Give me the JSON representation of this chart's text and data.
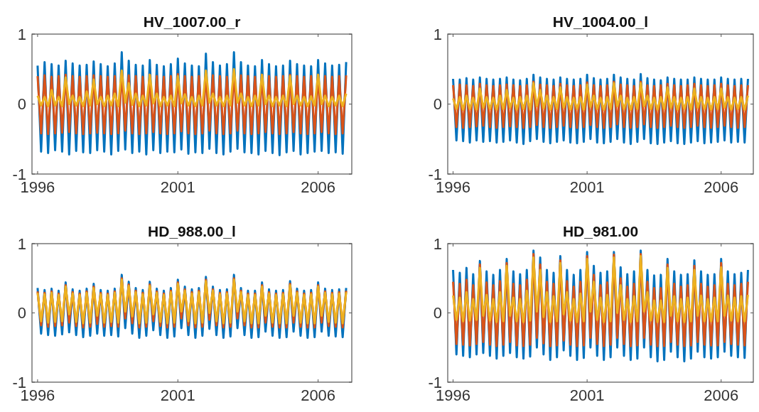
{
  "chart_data": [
    {
      "type": "line",
      "title": "HV_1007.00_r",
      "xlim": [
        1995.8,
        2007.2
      ],
      "ylim": [
        -1,
        1
      ],
      "xticks": [
        1996,
        2001,
        2006
      ],
      "yticks": [
        -1,
        0,
        1
      ],
      "x": [
        1996,
        1996.125,
        1996.25,
        1996.375,
        1996.5,
        1996.625,
        1996.75,
        1996.875,
        1997,
        1997.125,
        1997.25,
        1997.375,
        1997.5,
        1997.625,
        1997.75,
        1997.875,
        1998,
        1998.125,
        1998.25,
        1998.375,
        1998.5,
        1998.625,
        1998.75,
        1998.875,
        1999,
        1999.125,
        1999.25,
        1999.375,
        1999.5,
        1999.625,
        1999.75,
        1999.875,
        2000,
        2000.125,
        2000.25,
        2000.375,
        2000.5,
        2000.625,
        2000.75,
        2000.875,
        2001,
        2001.125,
        2001.25,
        2001.375,
        2001.5,
        2001.625,
        2001.75,
        2001.875,
        2002,
        2002.125,
        2002.25,
        2002.375,
        2002.5,
        2002.625,
        2002.75,
        2002.875,
        2003,
        2003.125,
        2003.25,
        2003.375,
        2003.5,
        2003.625,
        2003.75,
        2003.875,
        2004,
        2004.125,
        2004.25,
        2004.375,
        2004.5,
        2004.625,
        2004.75,
        2004.875,
        2005,
        2005.125,
        2005.25,
        2005.375,
        2005.5,
        2005.625,
        2005.75,
        2005.875,
        2006,
        2006.125,
        2006.25,
        2006.375,
        2006.5,
        2006.625,
        2006.75,
        2006.875,
        2007
      ],
      "series": [
        {
          "color": "#0072bd",
          "values": [
            0.55,
            -0.68,
            0.6,
            -0.7,
            0.57,
            -0.66,
            0.55,
            -0.68,
            0.62,
            -0.72,
            0.58,
            -0.67,
            0.55,
            -0.69,
            0.56,
            -0.7,
            0.61,
            -0.66,
            0.57,
            -0.68,
            0.54,
            -0.72,
            0.58,
            -0.67,
            0.74,
            -0.65,
            0.62,
            -0.7,
            0.56,
            -0.68,
            0.55,
            -0.72,
            0.63,
            -0.66,
            0.56,
            -0.7,
            0.54,
            -0.68,
            0.57,
            -0.69,
            0.65,
            -0.65,
            0.58,
            -0.71,
            0.55,
            -0.69,
            0.54,
            -0.7,
            0.72,
            -0.64,
            0.6,
            -0.7,
            0.55,
            -0.72,
            0.57,
            -0.68,
            0.74,
            -0.64,
            0.6,
            -0.69,
            0.55,
            -0.7,
            0.54,
            -0.72,
            0.63,
            -0.67,
            0.57,
            -0.7,
            0.54,
            -0.73,
            0.55,
            -0.69,
            0.62,
            -0.67,
            0.57,
            -0.72,
            0.55,
            -0.7,
            0.54,
            -0.68,
            0.63,
            -0.67,
            0.58,
            -0.7,
            0.55,
            -0.69,
            0.56,
            -0.71,
            0.6
          ]
        },
        {
          "color": "#d95319",
          "values": [
            0.4,
            -0.42,
            0.41,
            -0.43,
            0.39,
            -0.42,
            0.4,
            -0.41,
            0.42,
            -0.4,
            0.4,
            -0.42,
            0.39,
            -0.43,
            0.4,
            -0.42,
            0.41,
            -0.41,
            0.4,
            -0.42,
            0.39,
            -0.43,
            0.4,
            -0.42,
            0.45,
            -0.38,
            0.41,
            -0.42,
            0.4,
            -0.43,
            0.39,
            -0.42,
            0.42,
            -0.4,
            0.4,
            -0.42,
            0.39,
            -0.43,
            0.4,
            -0.42,
            0.43,
            -0.39,
            0.4,
            -0.42,
            0.39,
            -0.43,
            0.4,
            -0.42,
            0.44,
            -0.38,
            0.41,
            -0.42,
            0.4,
            -0.43,
            0.39,
            -0.42,
            0.45,
            -0.38,
            0.41,
            -0.42,
            0.4,
            -0.43,
            0.39,
            -0.42,
            0.42,
            -0.4,
            0.4,
            -0.42,
            0.39,
            -0.43,
            0.4,
            -0.42,
            0.42,
            -0.4,
            0.4,
            -0.42,
            0.39,
            -0.43,
            0.4,
            -0.42,
            0.42,
            -0.4,
            0.4,
            -0.42,
            0.39,
            -0.43,
            0.4,
            -0.42,
            0.41
          ]
        },
        {
          "color": "#edb120",
          "values": [
            0.12,
            -0.02,
            0.1,
            -0.03,
            0.2,
            -0.02,
            0.1,
            -0.03,
            0.38,
            0,
            0.12,
            -0.02,
            0.1,
            -0.03,
            0.18,
            -0.02,
            0.35,
            0,
            0.1,
            -0.03,
            0.12,
            -0.02,
            0.15,
            -0.03,
            0.48,
            0.02,
            0.3,
            -0.01,
            0.15,
            -0.03,
            0.12,
            -0.02,
            0.42,
            0.01,
            0.15,
            -0.03,
            0.1,
            -0.02,
            0.12,
            -0.03,
            0.4,
            0.01,
            0.14,
            -0.02,
            0.1,
            -0.03,
            0.12,
            -0.02,
            0.48,
            0.02,
            0.15,
            -0.02,
            0.1,
            -0.03,
            0.12,
            -0.02,
            0.5,
            0.02,
            0.15,
            -0.02,
            0.1,
            -0.03,
            0.12,
            -0.02,
            0.42,
            0,
            0.12,
            -0.03,
            0.1,
            -0.02,
            0.12,
            -0.03,
            0.4,
            0,
            0.12,
            -0.02,
            0.1,
            -0.03,
            0.11,
            -0.02,
            0.42,
            0,
            0.12,
            -0.03,
            0.1,
            -0.02,
            0.12,
            -0.03,
            0.15
          ]
        }
      ]
    },
    {
      "type": "line",
      "title": "HV_1004.00_l",
      "xlim": [
        1995.8,
        2007.2
      ],
      "ylim": [
        -1,
        1
      ],
      "xticks": [
        1996,
        2001,
        2006
      ],
      "yticks": [
        -1,
        0,
        1
      ],
      "x": [
        1996,
        1996.125,
        1996.25,
        1996.375,
        1996.5,
        1996.625,
        1996.75,
        1996.875,
        1997,
        1997.125,
        1997.25,
        1997.375,
        1997.5,
        1997.625,
        1997.75,
        1997.875,
        1998,
        1998.125,
        1998.25,
        1998.375,
        1998.5,
        1998.625,
        1998.75,
        1998.875,
        1999,
        1999.125,
        1999.25,
        1999.375,
        1999.5,
        1999.625,
        1999.75,
        1999.875,
        2000,
        2000.125,
        2000.25,
        2000.375,
        2000.5,
        2000.625,
        2000.75,
        2000.875,
        2001,
        2001.125,
        2001.25,
        2001.375,
        2001.5,
        2001.625,
        2001.75,
        2001.875,
        2002,
        2002.125,
        2002.25,
        2002.375,
        2002.5,
        2002.625,
        2002.75,
        2002.875,
        2003,
        2003.125,
        2003.25,
        2003.375,
        2003.5,
        2003.625,
        2003.75,
        2003.875,
        2004,
        2004.125,
        2004.25,
        2004.375,
        2004.5,
        2004.625,
        2004.75,
        2004.875,
        2005,
        2005.125,
        2005.25,
        2005.375,
        2005.5,
        2005.625,
        2005.75,
        2005.875,
        2006,
        2006.125,
        2006.25,
        2006.375,
        2006.5,
        2006.625,
        2006.75,
        2006.875,
        2007
      ],
      "series": [
        {
          "color": "#0072bd",
          "values": [
            0.36,
            -0.52,
            0.35,
            -0.53,
            0.37,
            -0.55,
            0.35,
            -0.52,
            0.38,
            -0.54,
            0.36,
            -0.53,
            0.35,
            -0.55,
            0.36,
            -0.54,
            0.38,
            -0.52,
            0.35,
            -0.55,
            0.34,
            -0.57,
            0.36,
            -0.53,
            0.42,
            -0.5,
            0.38,
            -0.54,
            0.36,
            -0.56,
            0.35,
            -0.54,
            0.38,
            -0.52,
            0.36,
            -0.55,
            0.35,
            -0.56,
            0.36,
            -0.54,
            0.42,
            -0.5,
            0.37,
            -0.55,
            0.35,
            -0.56,
            0.36,
            -0.54,
            0.42,
            -0.5,
            0.38,
            -0.55,
            0.36,
            -0.57,
            0.35,
            -0.54,
            0.43,
            -0.5,
            0.37,
            -0.56,
            0.35,
            -0.57,
            0.34,
            -0.55,
            0.38,
            -0.53,
            0.36,
            -0.56,
            0.35,
            -0.57,
            0.35,
            -0.55,
            0.38,
            -0.53,
            0.36,
            -0.56,
            0.35,
            -0.55,
            0.35,
            -0.54,
            0.38,
            -0.52,
            0.36,
            -0.55,
            0.35,
            -0.54,
            0.36,
            -0.55,
            0.36
          ]
        },
        {
          "color": "#d95319",
          "values": [
            0.27,
            -0.33,
            0.28,
            -0.34,
            0.27,
            -0.33,
            0.26,
            -0.32,
            0.29,
            -0.31,
            0.27,
            -0.33,
            0.26,
            -0.34,
            0.27,
            -0.33,
            0.28,
            -0.32,
            0.27,
            -0.33,
            0.26,
            -0.34,
            0.27,
            -0.33,
            0.32,
            -0.3,
            0.28,
            -0.33,
            0.27,
            -0.34,
            0.26,
            -0.33,
            0.29,
            -0.31,
            0.27,
            -0.33,
            0.26,
            -0.34,
            0.27,
            -0.33,
            0.31,
            -0.3,
            0.27,
            -0.33,
            0.26,
            -0.34,
            0.27,
            -0.33,
            0.32,
            -0.29,
            0.28,
            -0.33,
            0.27,
            -0.34,
            0.26,
            -0.33,
            0.32,
            -0.29,
            0.27,
            -0.33,
            0.26,
            -0.34,
            0.27,
            -0.33,
            0.29,
            -0.31,
            0.27,
            -0.33,
            0.26,
            -0.34,
            0.27,
            -0.33,
            0.29,
            -0.31,
            0.27,
            -0.33,
            0.26,
            -0.34,
            0.27,
            -0.33,
            0.29,
            -0.31,
            0.27,
            -0.33,
            0.26,
            -0.34,
            0.27,
            -0.33,
            0.27
          ]
        },
        {
          "color": "#edb120",
          "values": [
            0.08,
            -0.07,
            0.1,
            -0.08,
            0.12,
            -0.07,
            0.09,
            -0.08,
            0.22,
            -0.05,
            0.1,
            -0.07,
            0.09,
            -0.08,
            0.12,
            -0.07,
            0.2,
            -0.05,
            0.09,
            -0.08,
            0.1,
            -0.07,
            0.12,
            -0.08,
            0.3,
            -0.03,
            0.2,
            -0.06,
            0.12,
            -0.08,
            0.1,
            -0.07,
            0.24,
            -0.05,
            0.1,
            -0.08,
            0.09,
            -0.07,
            0.1,
            -0.08,
            0.28,
            -0.04,
            0.12,
            -0.07,
            0.09,
            -0.08,
            0.1,
            -0.07,
            0.3,
            -0.03,
            0.12,
            -0.07,
            0.09,
            -0.08,
            0.1,
            -0.07,
            0.3,
            -0.03,
            0.12,
            -0.07,
            0.09,
            -0.08,
            0.1,
            -0.07,
            0.24,
            -0.05,
            0.1,
            -0.08,
            0.09,
            -0.07,
            0.1,
            -0.08,
            0.22,
            -0.05,
            0.1,
            -0.07,
            0.09,
            -0.08,
            0.1,
            -0.07,
            0.22,
            -0.05,
            0.1,
            -0.08,
            0.09,
            -0.07,
            0.1,
            -0.08,
            0.12
          ]
        }
      ]
    },
    {
      "type": "line",
      "title": "HD_988.00_l",
      "xlim": [
        1995.8,
        2007.2
      ],
      "ylim": [
        -1,
        1
      ],
      "xticks": [
        1996,
        2001,
        2006
      ],
      "yticks": [
        -1,
        0,
        1
      ],
      "x": [
        1996,
        1996.125,
        1996.25,
        1996.375,
        1996.5,
        1996.625,
        1996.75,
        1996.875,
        1997,
        1997.125,
        1997.25,
        1997.375,
        1997.5,
        1997.625,
        1997.75,
        1997.875,
        1998,
        1998.125,
        1998.25,
        1998.375,
        1998.5,
        1998.625,
        1998.75,
        1998.875,
        1999,
        1999.125,
        1999.25,
        1999.375,
        1999.5,
        1999.625,
        1999.75,
        1999.875,
        2000,
        2000.125,
        2000.25,
        2000.375,
        2000.5,
        2000.625,
        2000.75,
        2000.875,
        2001,
        2001.125,
        2001.25,
        2001.375,
        2001.5,
        2001.625,
        2001.75,
        2001.875,
        2002,
        2002.125,
        2002.25,
        2002.375,
        2002.5,
        2002.625,
        2002.75,
        2002.875,
        2003,
        2003.125,
        2003.25,
        2003.375,
        2003.5,
        2003.625,
        2003.75,
        2003.875,
        2004,
        2004.125,
        2004.25,
        2004.375,
        2004.5,
        2004.625,
        2004.75,
        2004.875,
        2005,
        2005.125,
        2005.25,
        2005.375,
        2005.5,
        2005.625,
        2005.75,
        2005.875,
        2006,
        2006.125,
        2006.25,
        2006.375,
        2006.5,
        2006.625,
        2006.75,
        2006.875,
        2007
      ],
      "series": [
        {
          "color": "#0072bd",
          "values": [
            0.36,
            -0.3,
            0.33,
            -0.32,
            0.35,
            -0.33,
            0.32,
            -0.31,
            0.44,
            -0.28,
            0.34,
            -0.32,
            0.32,
            -0.35,
            0.35,
            -0.33,
            0.42,
            -0.3,
            0.33,
            -0.33,
            0.32,
            -0.32,
            0.35,
            -0.34,
            0.55,
            -0.22,
            0.45,
            -0.3,
            0.36,
            -0.36,
            0.33,
            -0.33,
            0.45,
            -0.25,
            0.35,
            -0.32,
            0.32,
            -0.36,
            0.36,
            -0.34,
            0.48,
            -0.22,
            0.38,
            -0.32,
            0.34,
            -0.36,
            0.36,
            -0.33,
            0.52,
            -0.23,
            0.38,
            -0.32,
            0.33,
            -0.36,
            0.34,
            -0.34,
            0.55,
            -0.22,
            0.36,
            -0.32,
            0.32,
            -0.36,
            0.32,
            -0.35,
            0.44,
            -0.27,
            0.34,
            -0.33,
            0.32,
            -0.36,
            0.33,
            -0.35,
            0.46,
            -0.27,
            0.35,
            -0.33,
            0.32,
            -0.36,
            0.33,
            -0.35,
            0.44,
            -0.27,
            0.35,
            -0.33,
            0.33,
            -0.34,
            0.34,
            -0.35,
            0.36
          ]
        },
        {
          "color": "#d95319",
          "values": [
            0.31,
            -0.18,
            0.29,
            -0.2,
            0.31,
            -0.19,
            0.28,
            -0.18,
            0.4,
            -0.14,
            0.3,
            -0.19,
            0.28,
            -0.21,
            0.31,
            -0.2,
            0.38,
            -0.16,
            0.29,
            -0.2,
            0.28,
            -0.19,
            0.31,
            -0.2,
            0.5,
            -0.08,
            0.41,
            -0.15,
            0.32,
            -0.21,
            0.29,
            -0.2,
            0.41,
            -0.12,
            0.31,
            -0.19,
            0.28,
            -0.21,
            0.32,
            -0.2,
            0.44,
            -0.08,
            0.34,
            -0.18,
            0.3,
            -0.21,
            0.32,
            -0.2,
            0.48,
            -0.1,
            0.34,
            -0.18,
            0.29,
            -0.21,
            0.3,
            -0.2,
            0.5,
            -0.08,
            0.32,
            -0.18,
            0.28,
            -0.21,
            0.28,
            -0.21,
            0.4,
            -0.14,
            0.3,
            -0.2,
            0.28,
            -0.21,
            0.29,
            -0.21,
            0.42,
            -0.14,
            0.31,
            -0.2,
            0.28,
            -0.21,
            0.29,
            -0.21,
            0.4,
            -0.14,
            0.31,
            -0.19,
            0.29,
            -0.2,
            0.3,
            -0.21,
            0.32
          ]
        },
        {
          "color": "#edb120",
          "values": [
            0.29,
            -0.12,
            0.27,
            -0.14,
            0.29,
            -0.13,
            0.26,
            -0.12,
            0.38,
            -0.02,
            0.28,
            -0.13,
            0.26,
            -0.15,
            0.29,
            -0.14,
            0.36,
            -0.04,
            0.27,
            -0.14,
            0.26,
            -0.13,
            0.29,
            -0.14,
            0.48,
            0.02,
            0.39,
            -0.05,
            0.3,
            -0.15,
            0.27,
            -0.14,
            0.39,
            -0.02,
            0.29,
            -0.13,
            0.26,
            -0.15,
            0.3,
            -0.14,
            0.42,
            0.02,
            0.32,
            -0.12,
            0.28,
            -0.15,
            0.3,
            -0.14,
            0.46,
            0,
            0.32,
            -0.12,
            0.27,
            -0.15,
            0.28,
            -0.14,
            0.48,
            0.02,
            0.3,
            -0.12,
            0.26,
            -0.15,
            0.26,
            -0.15,
            0.38,
            -0.04,
            0.28,
            -0.14,
            0.26,
            -0.15,
            0.27,
            -0.15,
            0.4,
            -0.04,
            0.29,
            -0.14,
            0.26,
            -0.15,
            0.27,
            -0.15,
            0.38,
            -0.04,
            0.29,
            -0.13,
            0.27,
            -0.14,
            0.28,
            -0.15,
            0.3
          ]
        }
      ]
    },
    {
      "type": "line",
      "title": "HD_981.00",
      "xlim": [
        1995.8,
        2007.2
      ],
      "ylim": [
        -1,
        1
      ],
      "xticks": [
        1996,
        2001,
        2006
      ],
      "yticks": [
        -1,
        0,
        1
      ],
      "x": [
        1996,
        1996.125,
        1996.25,
        1996.375,
        1996.5,
        1996.625,
        1996.75,
        1996.875,
        1997,
        1997.125,
        1997.25,
        1997.375,
        1997.5,
        1997.625,
        1997.75,
        1997.875,
        1998,
        1998.125,
        1998.25,
        1998.375,
        1998.5,
        1998.625,
        1998.75,
        1998.875,
        1999,
        1999.125,
        1999.25,
        1999.375,
        1999.5,
        1999.625,
        1999.75,
        1999.875,
        2000,
        2000.125,
        2000.25,
        2000.375,
        2000.5,
        2000.625,
        2000.75,
        2000.875,
        2001,
        2001.125,
        2001.25,
        2001.375,
        2001.5,
        2001.625,
        2001.75,
        2001.875,
        2002,
        2002.125,
        2002.25,
        2002.375,
        2002.5,
        2002.625,
        2002.75,
        2002.875,
        2003,
        2003.125,
        2003.25,
        2003.375,
        2003.5,
        2003.625,
        2003.75,
        2003.875,
        2004,
        2004.125,
        2004.25,
        2004.375,
        2004.5,
        2004.625,
        2004.75,
        2004.875,
        2005,
        2005.125,
        2005.25,
        2005.375,
        2005.5,
        2005.625,
        2005.75,
        2005.875,
        2006,
        2006.125,
        2006.25,
        2006.375,
        2006.5,
        2006.625,
        2006.75,
        2006.875,
        2007
      ],
      "series": [
        {
          "color": "#0072bd",
          "values": [
            0.62,
            -0.6,
            0.58,
            -0.62,
            0.65,
            -0.64,
            0.56,
            -0.6,
            0.75,
            -0.58,
            0.6,
            -0.62,
            0.55,
            -0.66,
            0.62,
            -0.62,
            0.78,
            -0.58,
            0.6,
            -0.64,
            0.56,
            -0.66,
            0.62,
            -0.63,
            0.9,
            -0.5,
            0.8,
            -0.6,
            0.62,
            -0.68,
            0.58,
            -0.64,
            0.82,
            -0.54,
            0.62,
            -0.62,
            0.55,
            -0.68,
            0.62,
            -0.65,
            0.88,
            -0.5,
            0.68,
            -0.62,
            0.58,
            -0.68,
            0.6,
            -0.64,
            0.88,
            -0.5,
            0.66,
            -0.62,
            0.56,
            -0.68,
            0.6,
            -0.66,
            0.9,
            -0.5,
            0.62,
            -0.64,
            0.54,
            -0.7,
            0.55,
            -0.68,
            0.78,
            -0.56,
            0.6,
            -0.64,
            0.55,
            -0.7,
            0.56,
            -0.66,
            0.76,
            -0.56,
            0.6,
            -0.64,
            0.55,
            -0.66,
            0.56,
            -0.64,
            0.78,
            -0.56,
            0.6,
            -0.62,
            0.56,
            -0.64,
            0.58,
            -0.65,
            0.62
          ]
        },
        {
          "color": "#d95319",
          "values": [
            0.45,
            -0.45,
            0.42,
            -0.46,
            0.48,
            -0.47,
            0.4,
            -0.45,
            0.7,
            -0.42,
            0.44,
            -0.46,
            0.4,
            -0.48,
            0.46,
            -0.46,
            0.72,
            -0.42,
            0.42,
            -0.47,
            0.4,
            -0.48,
            0.48,
            -0.46,
            0.85,
            -0.36,
            0.7,
            -0.44,
            0.45,
            -0.48,
            0.42,
            -0.47,
            0.76,
            -0.4,
            0.46,
            -0.46,
            0.38,
            -0.48,
            0.45,
            -0.47,
            0.82,
            -0.36,
            0.55,
            -0.45,
            0.4,
            -0.48,
            0.44,
            -0.46,
            0.84,
            -0.36,
            0.5,
            -0.45,
            0.38,
            -0.48,
            0.42,
            -0.47,
            0.85,
            -0.36,
            0.45,
            -0.46,
            0.36,
            -0.48,
            0.36,
            -0.48,
            0.7,
            -0.42,
            0.42,
            -0.46,
            0.38,
            -0.48,
            0.4,
            -0.47,
            0.68,
            -0.42,
            0.42,
            -0.46,
            0.38,
            -0.47,
            0.4,
            -0.47,
            0.72,
            -0.42,
            0.42,
            -0.45,
            0.4,
            -0.46,
            0.42,
            -0.47,
            0.45
          ]
        },
        {
          "color": "#edb120",
          "values": [
            0.25,
            -0.1,
            0.22,
            -0.12,
            0.3,
            -0.11,
            0.2,
            -0.1,
            0.65,
            -0.04,
            0.26,
            -0.11,
            0.2,
            -0.13,
            0.3,
            -0.12,
            0.68,
            -0.04,
            0.22,
            -0.12,
            0.2,
            -0.13,
            0.32,
            -0.11,
            0.8,
            0.02,
            0.62,
            -0.06,
            0.3,
            -0.13,
            0.24,
            -0.12,
            0.72,
            -0.02,
            0.3,
            -0.11,
            0.2,
            -0.13,
            0.28,
            -0.12,
            0.78,
            0.02,
            0.45,
            -0.1,
            0.22,
            -0.13,
            0.26,
            -0.12,
            0.8,
            0,
            0.4,
            -0.1,
            0.2,
            -0.13,
            0.24,
            -0.12,
            0.82,
            0.02,
            0.3,
            -0.11,
            0.18,
            -0.13,
            0.18,
            -0.13,
            0.65,
            -0.04,
            0.24,
            -0.12,
            0.2,
            -0.13,
            0.22,
            -0.12,
            0.62,
            -0.04,
            0.25,
            -0.12,
            0.2,
            -0.12,
            0.22,
            -0.12,
            0.66,
            -0.04,
            0.25,
            -0.11,
            0.22,
            -0.12,
            0.24,
            -0.12,
            0.26
          ]
        }
      ]
    }
  ]
}
